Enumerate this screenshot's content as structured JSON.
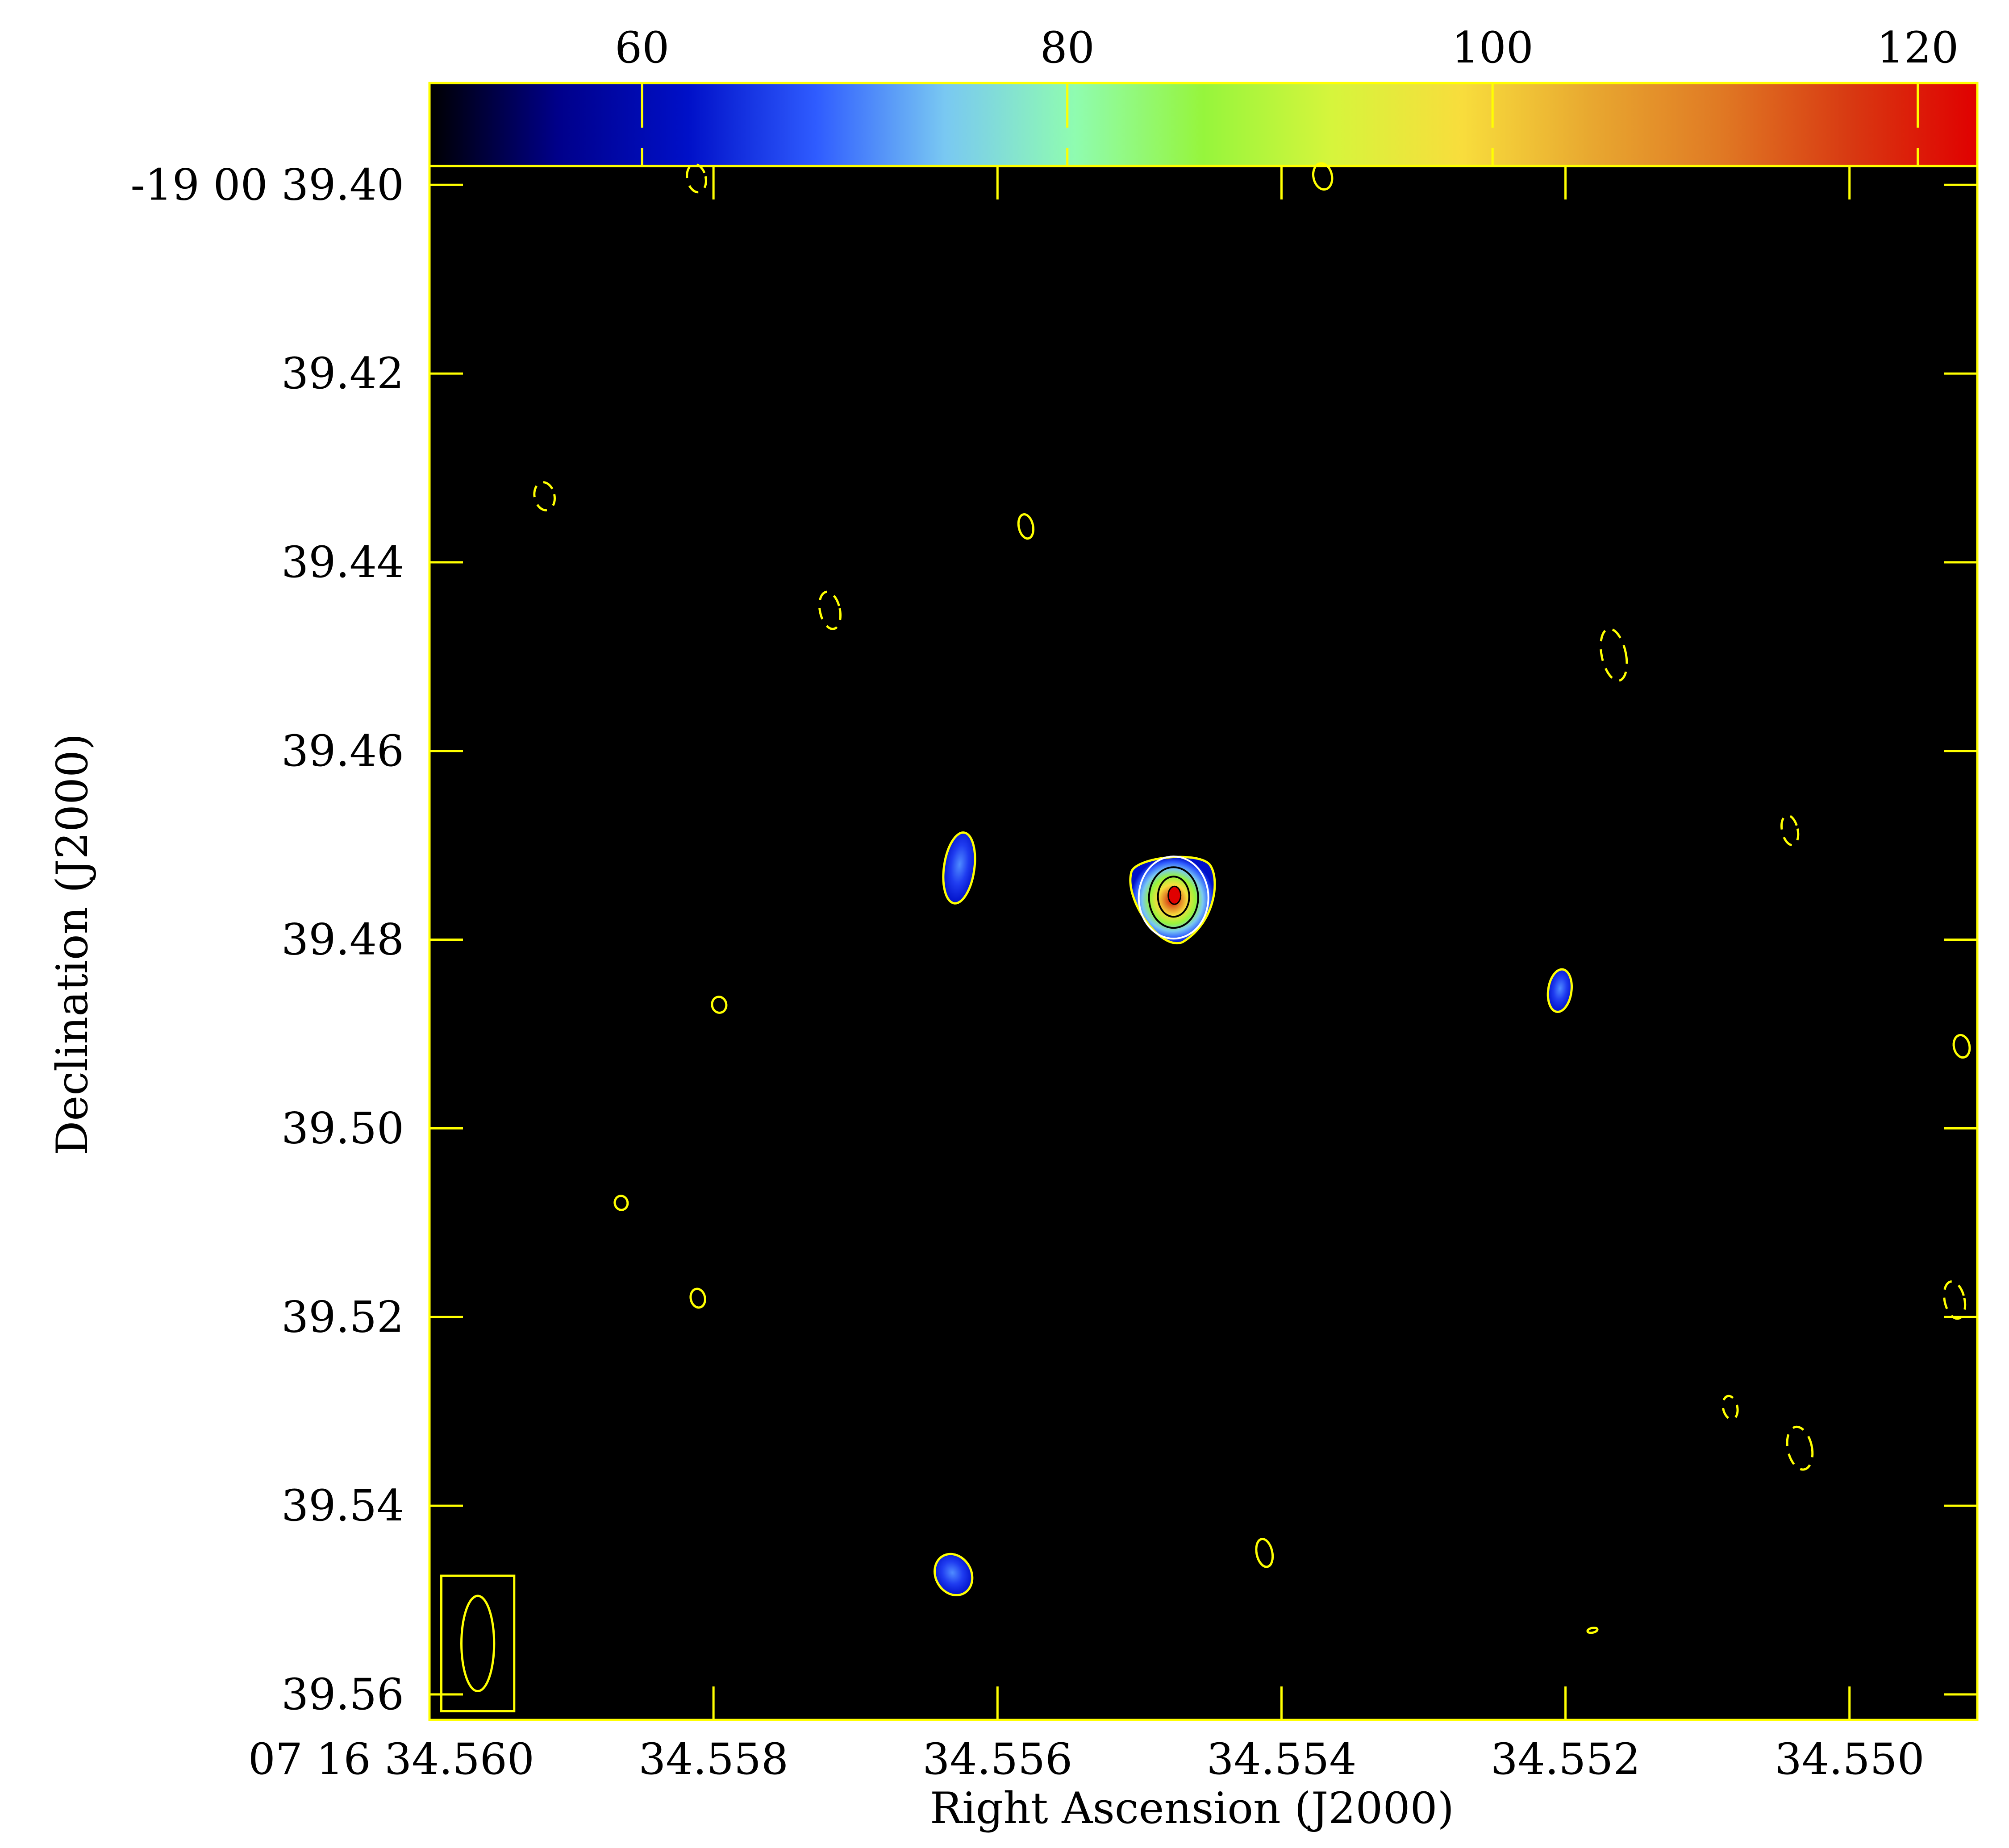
{
  "chart_data": {
    "type": "heatmap",
    "title": "",
    "xlabel": "Right Ascension (J2000)",
    "ylabel": "Declination (J2000)",
    "x_axis": {
      "range": [
        34.56,
        34.5491
      ],
      "reversed": true,
      "ticks": [
        {
          "value": 34.56,
          "label": "07 16 34.560"
        },
        {
          "value": 34.558,
          "label": "34.558"
        },
        {
          "value": 34.556,
          "label": "34.556"
        },
        {
          "value": 34.554,
          "label": "34.554"
        },
        {
          "value": 34.552,
          "label": "34.552"
        },
        {
          "value": 34.55,
          "label": "34.550"
        }
      ]
    },
    "y_axis": {
      "range": [
        39.398,
        39.5627
      ],
      "reversed": true,
      "ticks": [
        {
          "value": 39.4,
          "label": "-19 00 39.40"
        },
        {
          "value": 39.42,
          "label": "39.42"
        },
        {
          "value": 39.44,
          "label": "39.44"
        },
        {
          "value": 39.46,
          "label": "39.46"
        },
        {
          "value": 39.48,
          "label": "39.48"
        },
        {
          "value": 39.5,
          "label": "39.50"
        },
        {
          "value": 39.52,
          "label": "39.52"
        },
        {
          "value": 39.54,
          "label": "39.54"
        },
        {
          "value": 39.56,
          "label": "39.56"
        }
      ]
    },
    "colorbar": {
      "range": [
        50,
        122.8
      ],
      "ticks": [
        {
          "value": 60,
          "label": "60"
        },
        {
          "value": 80,
          "label": "80"
        },
        {
          "value": 100,
          "label": "100"
        },
        {
          "value": 120,
          "label": "120"
        }
      ],
      "colors": [
        "#000000",
        "#00008a",
        "#0010c8",
        "#2f5cff",
        "#79c8f2",
        "#8ffcb0",
        "#96f53c",
        "#d6f53c",
        "#f8dd3c",
        "#e8a830",
        "#e07a24",
        "#d83a12",
        "#e00000"
      ]
    },
    "frame_color": "#ffff00",
    "background": "#000000",
    "sources": [
      {
        "ra": 34.55476,
        "dec": 39.4753,
        "peak": 122,
        "kind": "main"
      },
      {
        "ra": 34.55627,
        "dec": 39.4724,
        "peak": 62,
        "kind": "blue"
      },
      {
        "ra": 34.55204,
        "dec": 39.4854,
        "peak": 58,
        "kind": "blue"
      },
      {
        "ra": 34.55631,
        "dec": 39.5473,
        "peak": 59,
        "kind": "blue"
      }
    ],
    "contour_blobs": [
      {
        "ra": 34.55919,
        "dec": 39.433,
        "dashed": true,
        "w": 9e-05,
        "h": 0.003
      },
      {
        "ra": 34.5558,
        "dec": 39.4362,
        "dashed": false,
        "w": 5e-05,
        "h": 0.0026
      },
      {
        "ra": 34.55718,
        "dec": 39.4451,
        "dashed": true,
        "w": 9e-05,
        "h": 0.004
      },
      {
        "ra": 34.55166,
        "dec": 39.4498,
        "dashed": true,
        "w": 0.00012,
        "h": 0.0056
      },
      {
        "ra": 34.55042,
        "dec": 39.4684,
        "dashed": true,
        "w": 6e-05,
        "h": 0.0032
      },
      {
        "ra": 34.55796,
        "dec": 39.4869,
        "dashed": false,
        "w": 5e-05,
        "h": 0.0017
      },
      {
        "ra": 34.54921,
        "dec": 39.4913,
        "dashed": false,
        "w": 6e-05,
        "h": 0.0024
      },
      {
        "ra": 34.55865,
        "dec": 39.5079,
        "dashed": false,
        "w": 4e-05,
        "h": 0.0015
      },
      {
        "ra": 34.55811,
        "dec": 39.518,
        "dashed": false,
        "w": 5e-05,
        "h": 0.002
      },
      {
        "ra": 34.54926,
        "dec": 39.5182,
        "dashed": true,
        "w": 9e-05,
        "h": 0.004
      },
      {
        "ra": 34.55084,
        "dec": 39.5296,
        "dashed": true,
        "w": 5e-05,
        "h": 0.0025
      },
      {
        "ra": 34.55035,
        "dec": 39.5339,
        "dashed": true,
        "w": 0.00012,
        "h": 0.0046
      },
      {
        "ra": 34.55412,
        "dec": 39.545,
        "dashed": false,
        "w": 6e-05,
        "h": 0.003
      },
      {
        "ra": 34.55181,
        "dec": 39.5532,
        "dashed": false,
        "w": 2e-05,
        "h": 0.0005
      },
      {
        "ra": 34.55812,
        "dec": 39.3993,
        "dashed": true,
        "w": 8e-05,
        "h": 0.003
      },
      {
        "ra": 34.55371,
        "dec": 39.3991,
        "dashed": false,
        "w": 8e-05,
        "h": 0.0028
      }
    ],
    "beam": {
      "ra": 34.55966,
      "dec": 39.5546,
      "w": 0.00018,
      "h": 0.0101
    },
    "grid": false
  }
}
